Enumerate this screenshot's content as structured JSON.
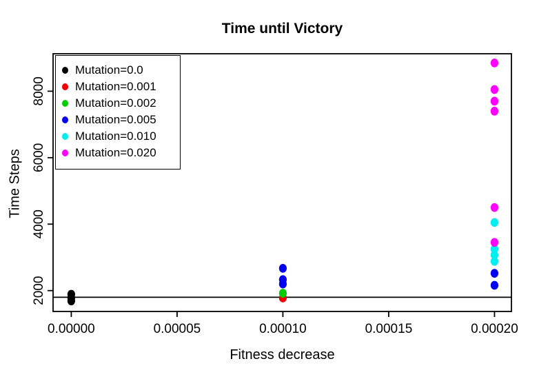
{
  "chart": {
    "title": "Time until Victory",
    "xlabel": "Fitness decrease",
    "ylabel": "Time Steps"
  },
  "chart_data": {
    "type": "scatter",
    "title": "Time until Victory",
    "xlabel": "Fitness decrease",
    "ylabel": "Time Steps",
    "xlim": [
      -8.6e-06,
      0.000208
    ],
    "ylim": [
      1372,
      9127
    ],
    "x_ticks": [
      0.0,
      5e-05,
      0.0001,
      0.00015,
      0.0002
    ],
    "x_tick_labels": [
      "0.00000",
      "0.00005",
      "0.00010",
      "0.00015",
      "0.00020"
    ],
    "y_ticks": [
      2000,
      4000,
      6000,
      8000
    ],
    "y_tick_labels": [
      "2000",
      "4000",
      "6000",
      "8000"
    ],
    "grid": false,
    "hline_y": 1800,
    "hline_color": "#000000",
    "legend_position": "topleft",
    "axis_color": "#000000",
    "background_color": "#ffffff",
    "series": [
      {
        "name": "Mutation=0.0",
        "color": "#000000",
        "points": [
          [
            0.0,
            1890
          ],
          [
            0.0,
            1780
          ],
          [
            0.0,
            1690
          ]
        ]
      },
      {
        "name": "Mutation=0.001",
        "color": "#F00000",
        "points": [
          [
            0.0001,
            1780
          ]
        ]
      },
      {
        "name": "Mutation=0.002",
        "color": "#00CD00",
        "points": [
          [
            0.0001,
            1920
          ]
        ]
      },
      {
        "name": "Mutation=0.005",
        "color": "#0000EE",
        "points": [
          [
            0.0001,
            2670
          ],
          [
            0.0001,
            2330
          ],
          [
            0.0001,
            2200
          ],
          [
            0.0002,
            2520
          ],
          [
            0.0002,
            2160
          ]
        ]
      },
      {
        "name": "Mutation=0.010",
        "color": "#00EEEE",
        "points": [
          [
            0.0002,
            4050
          ],
          [
            0.0002,
            3250
          ],
          [
            0.0002,
            3070
          ],
          [
            0.0002,
            2880
          ]
        ]
      },
      {
        "name": "Mutation=0.020",
        "color": "#FF00FF",
        "points": [
          [
            0.0002,
            8850
          ],
          [
            0.0002,
            8050
          ],
          [
            0.0002,
            7700
          ],
          [
            0.0002,
            7400
          ],
          [
            0.0002,
            4500
          ],
          [
            0.0002,
            3450
          ]
        ]
      }
    ]
  }
}
